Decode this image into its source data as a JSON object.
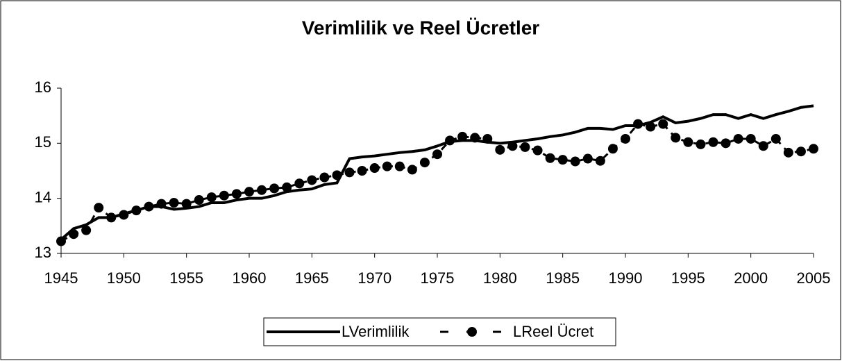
{
  "chart_data": {
    "type": "line",
    "title": "Verimlilik ve Reel Ücretler",
    "x": [
      1945,
      1946,
      1947,
      1948,
      1949,
      1950,
      1951,
      1952,
      1953,
      1954,
      1955,
      1956,
      1957,
      1958,
      1959,
      1960,
      1961,
      1962,
      1963,
      1964,
      1965,
      1966,
      1967,
      1968,
      1969,
      1970,
      1971,
      1972,
      1973,
      1974,
      1975,
      1976,
      1977,
      1978,
      1979,
      1980,
      1981,
      1982,
      1983,
      1984,
      1985,
      1986,
      1987,
      1988,
      1989,
      1990,
      1991,
      1992,
      1993,
      1994,
      1995,
      1996,
      1997,
      1998,
      1999,
      2000,
      2001,
      2002,
      2003,
      2004,
      2005
    ],
    "series": [
      {
        "name": "LVerimlilik",
        "color": "#000000",
        "style": "solid",
        "values": [
          13.25,
          13.45,
          13.52,
          13.65,
          13.65,
          13.72,
          13.78,
          13.85,
          13.85,
          13.8,
          13.82,
          13.85,
          13.92,
          13.92,
          13.97,
          14.0,
          14.0,
          14.05,
          14.12,
          14.15,
          14.17,
          14.25,
          14.28,
          14.72,
          14.75,
          14.77,
          14.8,
          14.83,
          14.85,
          14.88,
          14.95,
          15.03,
          15.05,
          15.05,
          15.02,
          15.0,
          15.02,
          15.05,
          15.08,
          15.12,
          15.15,
          15.2,
          15.27,
          15.27,
          15.25,
          15.32,
          15.32,
          15.38,
          15.48,
          15.37,
          15.4,
          15.45,
          15.52,
          15.52,
          15.45,
          15.52,
          15.45,
          15.52,
          15.58,
          15.65,
          15.68
        ]
      },
      {
        "name": "LReel Ücret",
        "color": "#000000",
        "style": "dashed-marker",
        "values": [
          13.22,
          13.35,
          13.42,
          13.83,
          13.65,
          13.7,
          13.78,
          13.85,
          13.9,
          13.92,
          13.9,
          13.97,
          14.02,
          14.05,
          14.08,
          14.12,
          14.15,
          14.18,
          14.2,
          14.27,
          14.33,
          14.38,
          14.42,
          14.47,
          14.5,
          14.55,
          14.58,
          14.58,
          14.52,
          14.65,
          14.8,
          15.05,
          15.12,
          15.1,
          15.08,
          14.88,
          14.95,
          14.93,
          14.87,
          14.73,
          14.7,
          14.67,
          14.72,
          14.68,
          14.9,
          15.08,
          15.35,
          15.3,
          15.35,
          15.1,
          15.02,
          14.98,
          15.02,
          15.0,
          15.08,
          15.08,
          14.95,
          15.08,
          14.83,
          14.85,
          14.9
        ]
      }
    ],
    "xlim": [
      1945,
      2005
    ],
    "xticks": [
      1945,
      1950,
      1955,
      1960,
      1965,
      1970,
      1975,
      1980,
      1985,
      1990,
      1995,
      2000,
      2005
    ],
    "ylim": [
      13,
      16
    ],
    "yticks": [
      13,
      14,
      15,
      16
    ],
    "grid": false,
    "legend": "bottom"
  }
}
